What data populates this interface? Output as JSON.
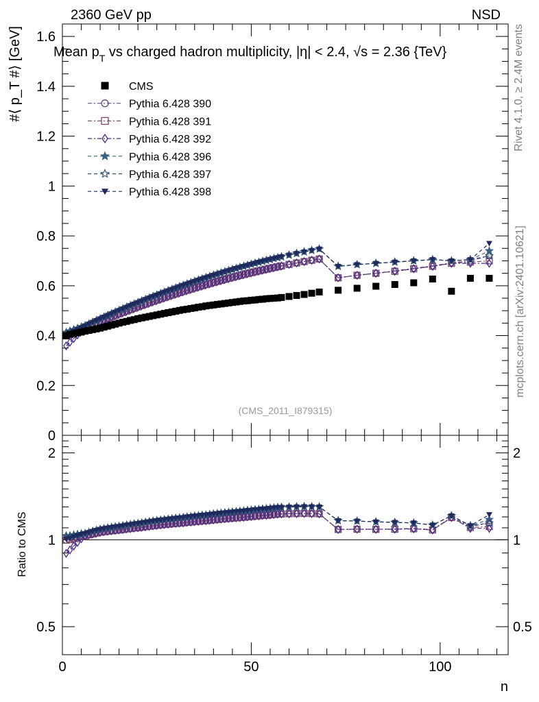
{
  "header": {
    "beam": "2360 GeV pp",
    "process": "NSD",
    "title_part1": "Mean p",
    "title_sub": "T",
    "title_part2": " vs charged hadron multiplicity, ",
    "title_eta": "|η| < 2.4, √s = 2.36 {TeV}"
  },
  "side_labels": {
    "rivet": "Rivet 4.1.0, ≥ 2.4M events",
    "mcplots": "mcplots.cern.ch [arXiv:2401.10621]"
  },
  "watermark": "(CMS_2011_I879315)",
  "chart_data": [
    {
      "type": "scatter",
      "panel": "main",
      "ylabel": "#⟨ p_T #⟩ [GeV]",
      "ylim": [
        0,
        1.65
      ],
      "xlim": [
        0,
        118
      ],
      "yticks": [
        0,
        0.2,
        0.4,
        0.6,
        0.8,
        1,
        1.2,
        1.4,
        1.6
      ],
      "ytick_labels": [
        "0",
        "0.2",
        "0.4",
        "0.6",
        "0.8",
        "1",
        "1.2",
        "1.4",
        "1.6"
      ],
      "cms": {
        "name": "CMS",
        "x": [
          1,
          2,
          3,
          4,
          5,
          6,
          7,
          8,
          9,
          10,
          11,
          12,
          13,
          14,
          15,
          16,
          17,
          18,
          19,
          20,
          21,
          22,
          23,
          24,
          25,
          26,
          27,
          28,
          29,
          30,
          31,
          32,
          33,
          34,
          35,
          36,
          37,
          38,
          39,
          40,
          41,
          42,
          43,
          44,
          45,
          46,
          47,
          48,
          49,
          50,
          51,
          52,
          53,
          54,
          55,
          56,
          57,
          58,
          60,
          62,
          64,
          66,
          68,
          73,
          78,
          83,
          88,
          93,
          98,
          103,
          108,
          113
        ],
        "y": [
          0.4,
          0.405,
          0.408,
          0.411,
          0.414,
          0.418,
          0.421,
          0.424,
          0.427,
          0.43,
          0.434,
          0.438,
          0.442,
          0.446,
          0.45,
          0.454,
          0.457,
          0.461,
          0.464,
          0.468,
          0.471,
          0.474,
          0.477,
          0.48,
          0.483,
          0.486,
          0.489,
          0.492,
          0.495,
          0.498,
          0.501,
          0.504,
          0.506,
          0.509,
          0.511,
          0.514,
          0.516,
          0.519,
          0.521,
          0.523,
          0.525,
          0.527,
          0.529,
          0.531,
          0.533,
          0.535,
          0.537,
          0.539,
          0.54,
          0.542,
          0.543,
          0.545,
          0.546,
          0.548,
          0.549,
          0.55,
          0.551,
          0.553,
          0.557,
          0.561,
          0.565,
          0.57,
          0.575,
          0.582,
          0.59,
          0.598,
          0.605,
          0.612,
          0.627,
          0.578,
          0.63,
          0.63
        ]
      },
      "series": [
        {
          "name": "Pythia 6.428 390",
          "marker": "circle-open",
          "dash": "dashdot",
          "color": "#6a4a86",
          "x_end": [
            73,
            78,
            83,
            88,
            93,
            98,
            103,
            108,
            113
          ],
          "y_end": [
            0.632,
            0.642,
            0.65,
            0.66,
            0.67,
            0.68,
            0.692,
            0.7,
            0.72
          ]
        },
        {
          "name": "Pythia 6.428 391",
          "marker": "square-open",
          "dash": "dashdot",
          "color": "#7a4a6a",
          "x_end": [
            73,
            78,
            83,
            88,
            93,
            98,
            103,
            108,
            113
          ],
          "y_end": [
            0.632,
            0.642,
            0.65,
            0.658,
            0.668,
            0.678,
            0.69,
            0.695,
            0.7
          ]
        },
        {
          "name": "Pythia 6.428 392",
          "marker": "diamond-open",
          "dash": "dashdot",
          "color": "#4a2a86",
          "x_end": [
            73,
            78,
            83,
            88,
            93,
            98,
            103,
            108,
            113
          ],
          "y_end": [
            0.632,
            0.642,
            0.65,
            0.658,
            0.668,
            0.678,
            0.69,
            0.69,
            0.69
          ]
        },
        {
          "name": "Pythia 6.428 396",
          "marker": "star-filled",
          "dash": "dashed",
          "color": "#3a6282",
          "x_end": [
            73,
            78,
            83,
            88,
            93,
            98,
            103,
            108,
            113
          ],
          "y_end": [
            0.678,
            0.685,
            0.69,
            0.695,
            0.7,
            0.705,
            0.7,
            0.705,
            0.74
          ]
        },
        {
          "name": "Pythia 6.428 397",
          "marker": "star-open",
          "dash": "dashed",
          "color": "#2e4e72",
          "x_end": [
            73,
            78,
            83,
            88,
            93,
            98,
            103,
            108,
            113
          ],
          "y_end": [
            0.678,
            0.685,
            0.69,
            0.695,
            0.7,
            0.705,
            0.7,
            0.705,
            0.72
          ]
        },
        {
          "name": "Pythia 6.428 398",
          "marker": "triangle-down-filled",
          "dash": "dashed",
          "color": "#1e2a5e",
          "x_end": [
            73,
            78,
            83,
            88,
            93,
            98,
            103,
            108,
            113
          ],
          "y_end": [
            0.678,
            0.685,
            0.69,
            0.695,
            0.7,
            0.705,
            0.7,
            0.705,
            0.77
          ]
        }
      ],
      "legend": "top-left"
    },
    {
      "type": "line",
      "panel": "ratio",
      "ylabel": "Ratio to CMS",
      "ylim": [
        0.4,
        2.3
      ],
      "xlim": [
        0,
        118
      ],
      "yticks": [
        0.5,
        1,
        2
      ],
      "ytick_labels": [
        "0.5",
        "1",
        "2"
      ],
      "xticks": [
        0,
        50,
        100
      ],
      "xtick_labels": [
        "0",
        "50",
        "100"
      ],
      "xlabel": "n",
      "reference_line": 1
    }
  ]
}
